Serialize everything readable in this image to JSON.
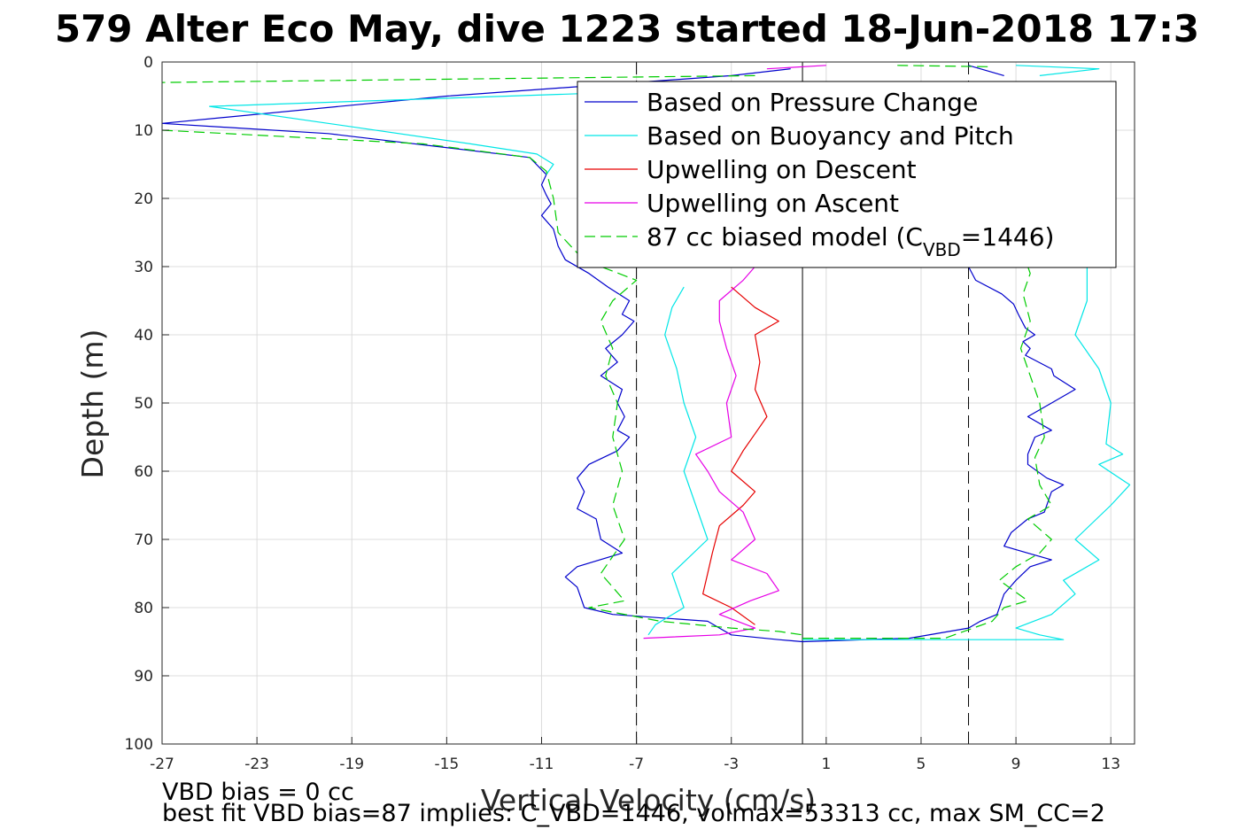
{
  "title": "579 Alter Eco May, dive 1223 started 18-Jun-2018 17:3",
  "notes": {
    "line1": "VBD bias = 0 cc",
    "line2": "best fit VBD bias=87 implies: C_VBD=1446, volmax=53313 cc, max SM_CC=2"
  },
  "chart_data": {
    "type": "line",
    "title": "579 Alter Eco May, dive 1223 started 18-Jun-2018 17:3",
    "xlabel": "Vertical Velocity (cm/s)",
    "ylabel": "Depth (m)",
    "xlim": [
      -27,
      14
    ],
    "ylim": [
      0,
      100
    ],
    "y_reversed": true,
    "grid": true,
    "legend_position": "top-right",
    "x_ticks": [
      "-27",
      "-23",
      "-19",
      "-15",
      "-11",
      "-7",
      "-3",
      "1",
      "5",
      "9",
      "13"
    ],
    "y_ticks": [
      "0",
      "10",
      "20",
      "30",
      "40",
      "50",
      "60",
      "70",
      "80",
      "90",
      "100"
    ],
    "reference_lines": [
      {
        "x": 0,
        "style": "solid",
        "color": "#000000"
      },
      {
        "x": -7,
        "style": "dashed",
        "color": "#000000"
      },
      {
        "x": 7,
        "style": "dashed",
        "color": "#000000"
      }
    ],
    "series": [
      {
        "name": "Based on Pressure Change",
        "color": "#0000cc",
        "dash": "solid",
        "segments": [
          [
            [
              -0.5,
              1
            ],
            [
              -3,
              2
            ],
            [
              -15,
              5
            ],
            [
              -27,
              9
            ],
            [
              -20,
              10.5
            ],
            [
              -11.5,
              14
            ],
            [
              -10.8,
              16.5
            ],
            [
              -11,
              18
            ],
            [
              -10.8,
              19.5
            ],
            [
              -10.6,
              20.8
            ],
            [
              -11,
              22.5
            ],
            [
              -10.5,
              24.5
            ],
            [
              -10.3,
              27
            ],
            [
              -10,
              29
            ],
            [
              -9,
              31
            ],
            [
              -8.2,
              33
            ],
            [
              -7.3,
              35
            ],
            [
              -7.6,
              37
            ],
            [
              -7.1,
              38
            ],
            [
              -7.6,
              40
            ],
            [
              -8.3,
              42
            ],
            [
              -7.8,
              44
            ],
            [
              -8.5,
              46
            ],
            [
              -7.6,
              48
            ],
            [
              -7.8,
              50
            ],
            [
              -7.5,
              52
            ],
            [
              -7.8,
              54
            ],
            [
              -7.3,
              55
            ],
            [
              -7.8,
              57
            ],
            [
              -9,
              59
            ],
            [
              -9.5,
              61
            ],
            [
              -9.2,
              63
            ],
            [
              -9.5,
              65.5
            ],
            [
              -8.7,
              67
            ],
            [
              -8.5,
              70
            ],
            [
              -7.6,
              72
            ],
            [
              -9.5,
              74
            ],
            [
              -10,
              75.5
            ],
            [
              -9.5,
              77
            ],
            [
              -9.2,
              80
            ],
            [
              -8,
              81
            ],
            [
              -4,
              82
            ],
            [
              -3.5,
              83
            ],
            [
              -3,
              84
            ],
            [
              -1,
              84.7
            ],
            [
              0,
              85
            ]
          ],
          [
            [
              0,
              85
            ],
            [
              4.5,
              84.5
            ],
            [
              7,
              83
            ],
            [
              7.5,
              82
            ],
            [
              8.2,
              81
            ],
            [
              8.5,
              78
            ],
            [
              9,
              76
            ],
            [
              9.6,
              74
            ],
            [
              10.5,
              73
            ],
            [
              9.5,
              72
            ],
            [
              8.5,
              71
            ],
            [
              8.8,
              69
            ],
            [
              9.5,
              67
            ],
            [
              10.2,
              66
            ],
            [
              10.5,
              63
            ],
            [
              11,
              62
            ],
            [
              10.3,
              61
            ],
            [
              9.5,
              59
            ],
            [
              9.5,
              57.5
            ],
            [
              9.8,
              55
            ],
            [
              10.5,
              54
            ],
            [
              9.5,
              52
            ],
            [
              10.5,
              50
            ],
            [
              11.5,
              48
            ],
            [
              10.6,
              46
            ],
            [
              10.5,
              45
            ],
            [
              9.4,
              43
            ],
            [
              9.6,
              42
            ],
            [
              9.3,
              41
            ],
            [
              9.8,
              40
            ],
            [
              9.4,
              39
            ],
            [
              9.1,
              37
            ],
            [
              8.9,
              35.5
            ],
            [
              8.4,
              34
            ],
            [
              7.3,
              32
            ],
            [
              7,
              30
            ]
          ],
          [
            [
              7,
              0.5
            ],
            [
              8.5,
              2
            ]
          ]
        ]
      },
      {
        "name": "Based on Buoyancy and Pitch",
        "color": "#00e6e6",
        "dash": "solid",
        "segments": [
          [
            [
              -4,
              4
            ],
            [
              -25,
              6.5
            ],
            [
              -20,
              9
            ],
            [
              -14,
              12
            ],
            [
              -11.2,
              13.5
            ],
            [
              -10.5,
              15
            ],
            [
              -10.8,
              16.5
            ]
          ],
          [
            [
              -5,
              33
            ],
            [
              -5.5,
              36
            ],
            [
              -5.8,
              40
            ],
            [
              -5.3,
              45
            ],
            [
              -5,
              50
            ],
            [
              -4.5,
              55
            ],
            [
              -5,
              60
            ],
            [
              -4.5,
              65
            ],
            [
              -4,
              70
            ],
            [
              -5.5,
              75
            ],
            [
              -5,
              80
            ],
            [
              -6.2,
              82.5
            ],
            [
              -6.5,
              84
            ]
          ],
          [
            [
              0,
              84.7
            ],
            [
              11,
              84.7
            ],
            [
              10,
              84
            ],
            [
              9,
              83
            ],
            [
              10.5,
              81
            ],
            [
              11.5,
              78
            ],
            [
              11,
              76
            ],
            [
              12.5,
              73
            ],
            [
              11.5,
              70
            ],
            [
              13,
              65
            ],
            [
              13.8,
              62
            ],
            [
              12.5,
              59
            ],
            [
              13.5,
              57.5
            ],
            [
              12.8,
              56
            ],
            [
              13,
              50
            ],
            [
              12.5,
              45
            ],
            [
              11.5,
              40
            ],
            [
              12,
              35
            ],
            [
              12,
              30
            ]
          ],
          [
            [
              9,
              0.5
            ],
            [
              12.5,
              1
            ],
            [
              10,
              2
            ]
          ]
        ]
      },
      {
        "name": "Upwelling on Descent",
        "color": "#e60000",
        "dash": "solid",
        "segments": [
          [
            [
              -3,
              33
            ],
            [
              -2,
              36
            ],
            [
              -1,
              38
            ],
            [
              -2,
              40
            ],
            [
              -1.8,
              44
            ],
            [
              -2,
              48
            ],
            [
              -1.5,
              52
            ],
            [
              -2,
              54.5
            ],
            [
              -2.5,
              57
            ],
            [
              -3,
              60
            ],
            [
              -2,
              63
            ],
            [
              -2.5,
              65
            ],
            [
              -3.5,
              68
            ],
            [
              -3.8,
              72
            ],
            [
              -4,
              75
            ],
            [
              -4.2,
              78
            ],
            [
              -3,
              80
            ],
            [
              -2,
              82.5
            ]
          ]
        ]
      },
      {
        "name": "Upwelling on Ascent",
        "color": "#e600e6",
        "dash": "solid",
        "segments": [
          [
            [
              -6.7,
              84.5
            ],
            [
              -3.5,
              84
            ],
            [
              -2,
              83
            ],
            [
              -3.5,
              81
            ],
            [
              -2.2,
              79
            ],
            [
              -1,
              77.5
            ],
            [
              -1.5,
              75
            ],
            [
              -3,
              73
            ],
            [
              -2,
              70
            ],
            [
              -2.5,
              66
            ],
            [
              -3.5,
              63
            ],
            [
              -4,
              60
            ],
            [
              -4.5,
              57.5
            ],
            [
              -3,
              55
            ],
            [
              -3.2,
              50
            ],
            [
              -2.8,
              46
            ],
            [
              -3.2,
              42
            ],
            [
              -3.5,
              38
            ],
            [
              -3.5,
              35
            ],
            [
              -2.5,
              32
            ],
            [
              -2,
              30
            ]
          ],
          [
            [
              1,
              0.5
            ],
            [
              -1.5,
              1
            ]
          ]
        ]
      },
      {
        "name": "87 cc biased model (C",
        "name_sub": "VBD",
        "name_end": "=1446)",
        "color": "#00cc00",
        "dash": "dashed",
        "segments": [
          [
            [
              -2,
              2
            ],
            [
              -27,
              3
            ]
          ],
          [
            [
              -27,
              10
            ],
            [
              -16,
              12
            ],
            [
              -11.5,
              14
            ],
            [
              -10.8,
              16
            ],
            [
              -10.5,
              20
            ],
            [
              -10.3,
              25
            ],
            [
              -9.5,
              28
            ],
            [
              -8.5,
              30
            ],
            [
              -7,
              32
            ],
            [
              -8,
              35
            ],
            [
              -8.5,
              38
            ],
            [
              -8,
              42
            ],
            [
              -8.3,
              46
            ],
            [
              -7.8,
              50
            ],
            [
              -8,
              55
            ],
            [
              -7.6,
              60
            ],
            [
              -8,
              65
            ],
            [
              -7.5,
              70
            ],
            [
              -8.5,
              75
            ],
            [
              -7.5,
              79
            ],
            [
              -9,
              80
            ],
            [
              -6,
              82
            ],
            [
              -3,
              83
            ],
            [
              -1,
              83.5
            ],
            [
              0,
              84
            ]
          ],
          [
            [
              0,
              84.5
            ],
            [
              6,
              84.5
            ],
            [
              8,
              82
            ],
            [
              8.5,
              80
            ],
            [
              9.5,
              79
            ],
            [
              8.3,
              76
            ],
            [
              9,
              74
            ],
            [
              10,
              72
            ],
            [
              10.5,
              70
            ],
            [
              9.5,
              67
            ],
            [
              10.5,
              65
            ],
            [
              10,
              62
            ],
            [
              9.8,
              58
            ],
            [
              10.2,
              55
            ],
            [
              10,
              50
            ],
            [
              9.6,
              46
            ],
            [
              9.2,
              42
            ],
            [
              9.6,
              38
            ],
            [
              9.3,
              34
            ],
            [
              9.6,
              31
            ],
            [
              9.5,
              30
            ]
          ],
          [
            [
              4,
              0.5
            ],
            [
              8,
              0.7
            ]
          ]
        ]
      }
    ]
  }
}
